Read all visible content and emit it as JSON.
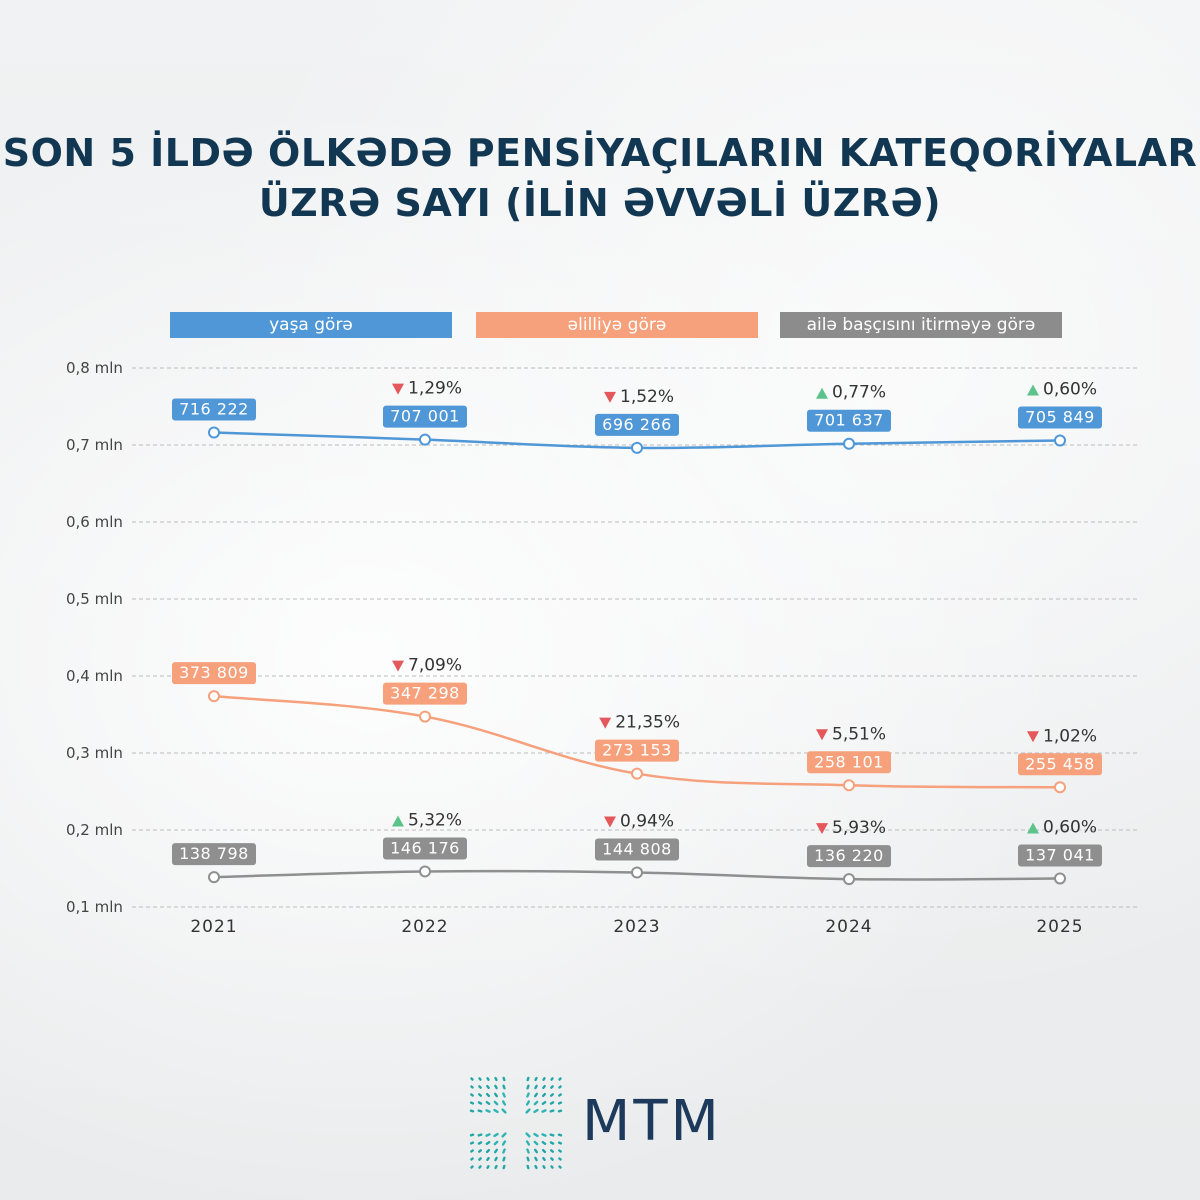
{
  "title": {
    "line1": "SON 5 İLDƏ ÖLKƏDƏ PENSİYAÇILARIN KATEQORİYALAR",
    "line2": "ÜZRƏ SAYI (İLİN ƏVVƏLİ ÜZRƏ)"
  },
  "legend": [
    {
      "label": "yaşa görə",
      "color": "#4f97d7"
    },
    {
      "label": "əlilliyə görə",
      "color": "#f6a07c"
    },
    {
      "label": "ailə başçısını itirməyə görə",
      "color": "#8c8c8c"
    }
  ],
  "logo": {
    "text": "MTM",
    "icon": "mtm-logo-icon"
  },
  "colors": {
    "up_arrow": "#5cc38a",
    "down_arrow": "#e4585b",
    "grid": "#b9bcbf"
  },
  "chart_data": {
    "type": "line",
    "x": [
      "2021",
      "2022",
      "2023",
      "2024",
      "2025"
    ],
    "ylim": [
      0.1,
      0.8
    ],
    "yticks": [
      {
        "value": 0.8,
        "label": "0,8 mln"
      },
      {
        "value": 0.7,
        "label": "0,7 mln"
      },
      {
        "value": 0.6,
        "label": "0,6 mln"
      },
      {
        "value": 0.5,
        "label": "0,5 mln"
      },
      {
        "value": 0.4,
        "label": "0,4 mln"
      },
      {
        "value": 0.3,
        "label": "0,3 mln"
      },
      {
        "value": 0.2,
        "label": "0,2 mln"
      },
      {
        "value": 0.1,
        "label": "0,1 mln"
      }
    ],
    "grid": true,
    "series": [
      {
        "name": "yaşa görə",
        "color": "#4f97d7",
        "values": [
          716222,
          707001,
          696266,
          701637,
          705849
        ],
        "labels": [
          "716 222",
          "707 001",
          "696 266",
          "701 637",
          "705 849"
        ],
        "changes": [
          null,
          {
            "dir": "down",
            "text": "1,29%"
          },
          {
            "dir": "down",
            "text": "1,52%"
          },
          {
            "dir": "up",
            "text": "0,77%"
          },
          {
            "dir": "up",
            "text": "0,60%"
          }
        ]
      },
      {
        "name": "əlilliyə görə",
        "color": "#f6a07c",
        "values": [
          373809,
          347298,
          273153,
          258101,
          255458
        ],
        "labels": [
          "373 809",
          "347 298",
          "273 153",
          "258 101",
          "255 458"
        ],
        "changes": [
          null,
          {
            "dir": "down",
            "text": "7,09%"
          },
          {
            "dir": "down",
            "text": "21,35%"
          },
          {
            "dir": "down",
            "text": "5,51%"
          },
          {
            "dir": "down",
            "text": "1,02%"
          }
        ]
      },
      {
        "name": "ailə başçısını itirməyə görə",
        "color": "#8f8f8f",
        "values": [
          138798,
          146176,
          144808,
          136220,
          137041
        ],
        "labels": [
          "138 798",
          "146 176",
          "144 808",
          "136 220",
          "137 041"
        ],
        "changes": [
          null,
          {
            "dir": "up",
            "text": "5,32%"
          },
          {
            "dir": "down",
            "text": "0,94%"
          },
          {
            "dir": "down",
            "text": "5,93%"
          },
          {
            "dir": "up",
            "text": "0,60%"
          }
        ]
      }
    ]
  }
}
